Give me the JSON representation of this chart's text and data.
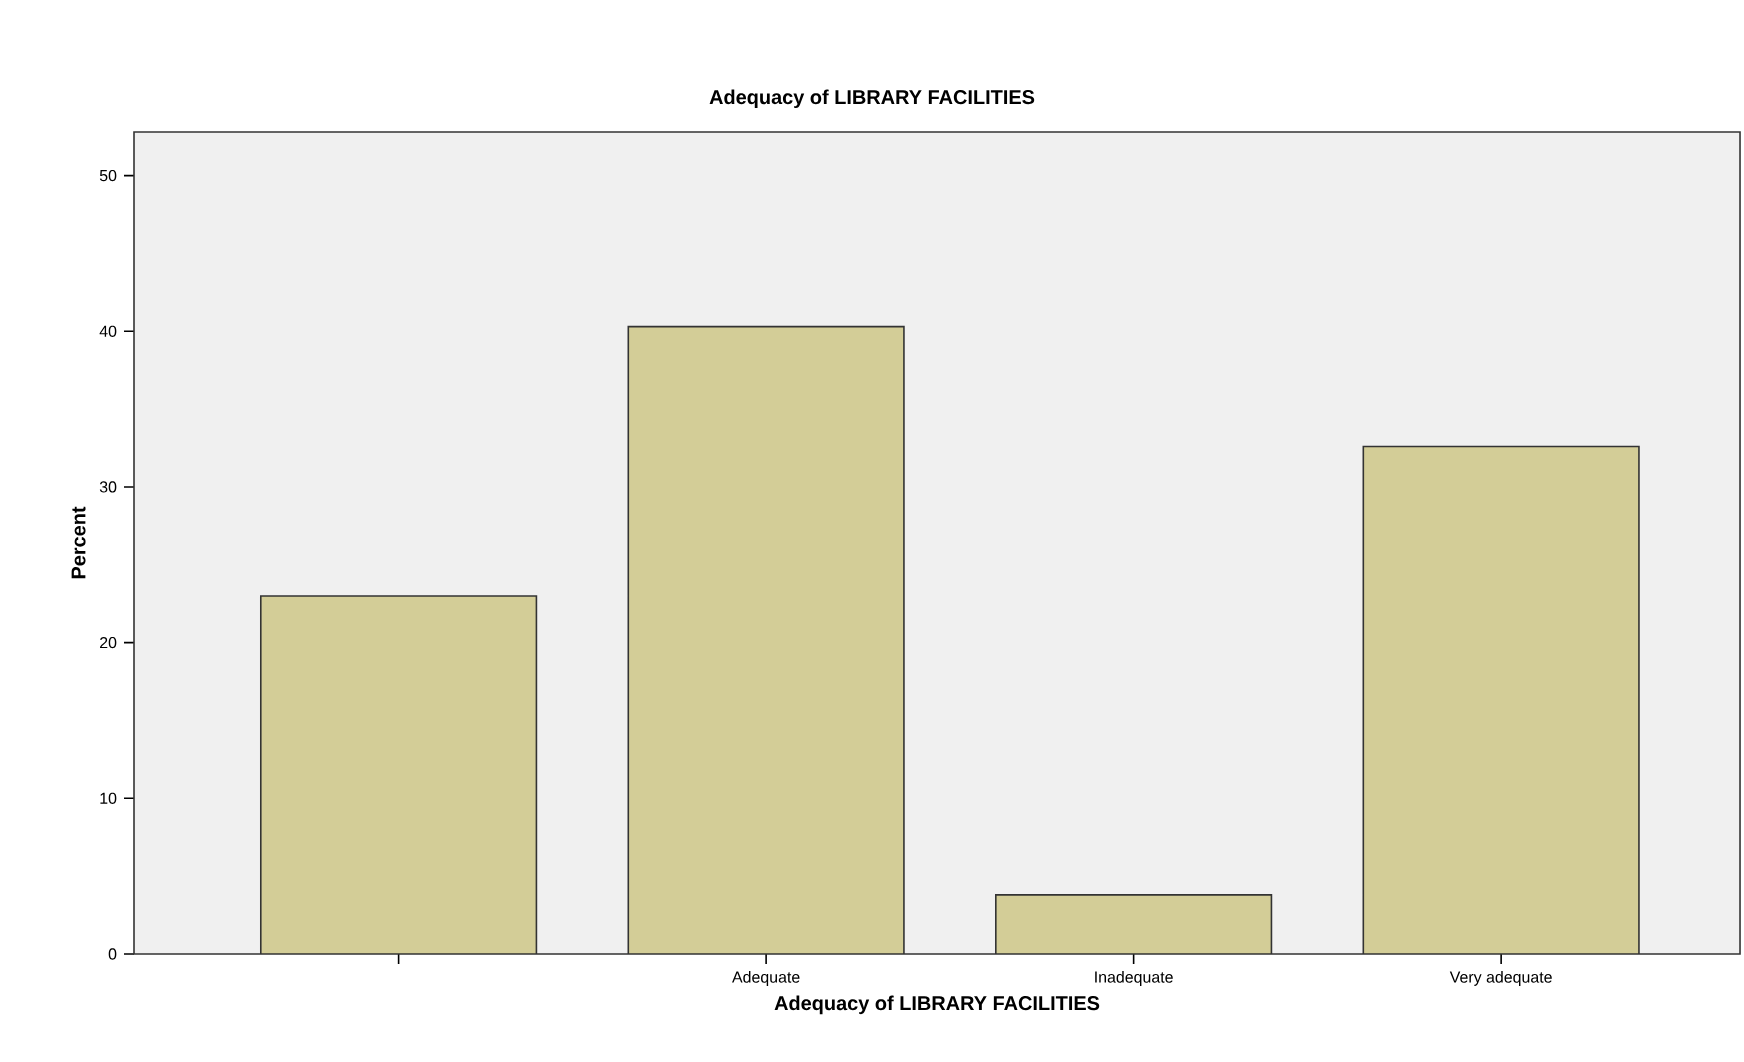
{
  "chart_data": {
    "type": "bar",
    "title": "Adequacy of LIBRARY FACILITIES",
    "xlabel": "Adequacy of LIBRARY FACILITIES",
    "ylabel": "Percent",
    "categories": [
      null,
      "Adequate",
      "Inadequate",
      "Very adequate"
    ],
    "values": [
      23.0,
      40.3,
      3.8,
      32.6
    ],
    "color": "#d3cd97",
    "ylim": [
      0,
      52.8
    ],
    "yticks": [
      0,
      10,
      20,
      30,
      40,
      50
    ]
  }
}
